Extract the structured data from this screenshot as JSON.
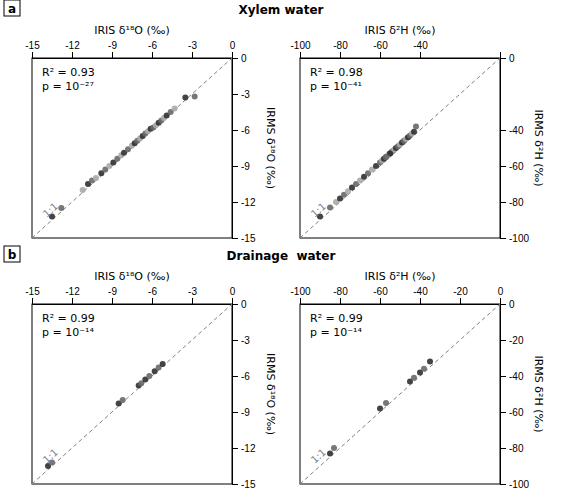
{
  "chart_data": [
    {
      "type": "scatter",
      "title": "Xylem water",
      "panel": "a",
      "x_label": "IRIS δ¹⁸O (‰)",
      "y_label": "IRMS δ¹⁸O (‰)",
      "xlim": [
        -15,
        0
      ],
      "ylim": [
        -15,
        0
      ],
      "xticks": [
        -15,
        -12,
        -9,
        -6,
        -3,
        0
      ],
      "yticks": [
        -15,
        -12,
        -9,
        -6,
        -3,
        0
      ],
      "annotations": [
        "1:1",
        "R² = 0.93",
        "p = 10⁻²⁷"
      ],
      "series": [
        {
          "type": "scatter",
          "x": [
            -13.5,
            -12.8,
            -11.2,
            -10.8,
            -10.5,
            -10.2,
            -9.8,
            -9.5,
            -9.2,
            -8.9,
            -8.6,
            -8.3,
            -8.1,
            -7.8,
            -7.5,
            -7.3,
            -7.1,
            -6.9,
            -6.7,
            -6.5,
            -6.3,
            -6.1,
            -5.9,
            -5.7,
            -5.5,
            -5.3,
            -5.1,
            -4.9,
            -4.6,
            -4.3,
            -3.5,
            -2.8
          ],
          "values": [
            -13.2,
            -12.5,
            -11.0,
            -10.5,
            -10.2,
            -10.0,
            -9.6,
            -9.3,
            -9.0,
            -8.7,
            -8.4,
            -8.1,
            -7.9,
            -7.6,
            -7.3,
            -7.1,
            -6.9,
            -6.7,
            -6.5,
            -6.3,
            -6.1,
            -5.9,
            -5.8,
            -5.6,
            -5.4,
            -5.2,
            -5.0,
            -4.8,
            -4.5,
            -4.2,
            -3.3,
            -3.2
          ],
          "colors": [
            "#303030",
            "#686868",
            "#a8a8a8",
            "#303030",
            "#686868",
            "#a8a8a8",
            "#303030",
            "#686868",
            "#a8a8a8",
            "#303030",
            "#686868",
            "#a8a8a8",
            "#303030",
            "#686868",
            "#a8a8a8",
            "#303030",
            "#686868",
            "#a8a8a8",
            "#303030",
            "#686868",
            "#a8a8a8",
            "#303030",
            "#686868",
            "#a8a8a8",
            "#303030",
            "#686868",
            "#a8a8a8",
            "#303030",
            "#686868",
            "#a8a8a8",
            "#303030",
            "#686868"
          ]
        },
        {
          "type": "line",
          "line_style": "dashed",
          "color": "gray",
          "x": [
            -15,
            0
          ],
          "values": [
            -15,
            0
          ]
        }
      ]
    },
    {
      "type": "scatter",
      "x_label": "IRIS δ²H (‰)",
      "y_label": "IRMS δ²H (‰)",
      "xlim": [
        -100,
        0
      ],
      "ylim": [
        -100,
        0
      ],
      "xticks": [
        -100,
        -80,
        -60,
        -40
      ],
      "yticks": [
        -100,
        -80,
        -60,
        -40,
        0
      ],
      "annotations": [
        "1:1",
        "R² = 0.98",
        "p = 10⁻⁴¹"
      ],
      "series": [
        {
          "type": "scatter",
          "x": [
            -90,
            -85,
            -82,
            -80,
            -78,
            -76,
            -74,
            -72,
            -70,
            -68,
            -66,
            -64,
            -62,
            -60,
            -59,
            -58,
            -57,
            -56,
            -55,
            -54,
            -53,
            -52,
            -51,
            -50,
            -49,
            -48,
            -47,
            -46,
            -45,
            -44,
            -43,
            -42,
            -56,
            -55,
            -57
          ],
          "values": [
            -88,
            -83,
            -80,
            -78,
            -76,
            -74,
            -72,
            -70,
            -68,
            -66,
            -64,
            -62,
            -60,
            -58,
            -57,
            -56,
            -55,
            -54,
            -53,
            -52,
            -51,
            -50,
            -49,
            -48,
            -47,
            -46,
            -45,
            -44,
            -43,
            -42,
            -41,
            -38,
            -54,
            -53,
            -55
          ],
          "colors": [
            "#303030",
            "#686868",
            "#a8a8a8",
            "#303030",
            "#686868",
            "#a8a8a8",
            "#303030",
            "#686868",
            "#a8a8a8",
            "#303030",
            "#686868",
            "#a8a8a8",
            "#303030",
            "#686868",
            "#a8a8a8",
            "#303030",
            "#686868",
            "#a8a8a8",
            "#303030",
            "#686868",
            "#a8a8a8",
            "#303030",
            "#686868",
            "#a8a8a8",
            "#303030",
            "#686868",
            "#a8a8a8",
            "#303030",
            "#686868",
            "#a8a8a8",
            "#303030",
            "#686868",
            "#a8a8a8",
            "#303030",
            "#686868"
          ]
        },
        {
          "type": "line",
          "line_style": "dashed",
          "color": "gray",
          "x": [
            -100,
            0
          ],
          "values": [
            -100,
            0
          ]
        }
      ]
    },
    {
      "type": "scatter",
      "title": "Drainage  water",
      "panel": "b",
      "x_label": "IRIS δ¹⁸O (‰)",
      "y_label": "IRMS δ¹⁸O (‰)",
      "xlim": [
        -15,
        0
      ],
      "ylim": [
        -15,
        0
      ],
      "xticks": [
        -15,
        -12,
        -9,
        -6,
        -3,
        0
      ],
      "yticks": [
        -15,
        -12,
        -9,
        -6,
        -3,
        0
      ],
      "annotations": [
        "1:1",
        "R² = 0.99",
        "p = 10⁻¹⁴"
      ],
      "series": [
        {
          "type": "scatter",
          "x": [
            -13.8,
            -13.5,
            -8.5,
            -8.2,
            -7.0,
            -6.8,
            -6.5,
            -6.2,
            -5.8,
            -5.5,
            -5.2
          ],
          "values": [
            -13.5,
            -13.2,
            -8.3,
            -8.0,
            -6.8,
            -6.6,
            -6.3,
            -6.0,
            -5.6,
            -5.3,
            -5.0
          ],
          "colors": [
            "#303030",
            "#686868",
            "#303030",
            "#686868",
            "#303030",
            "#686868",
            "#303030",
            "#686868",
            "#303030",
            "#686868",
            "#303030"
          ]
        },
        {
          "type": "line",
          "line_style": "dashed",
          "color": "gray",
          "x": [
            -15,
            0
          ],
          "values": [
            -15,
            0
          ]
        }
      ]
    },
    {
      "type": "scatter",
      "x_label": "IRIS δ²H (‰)",
      "y_label": "IRMS δ²H (‰)",
      "xlim": [
        -100,
        0
      ],
      "ylim": [
        -100,
        0
      ],
      "xticks": [
        -100,
        -80,
        -60,
        -40,
        -20,
        0
      ],
      "yticks": [
        -100,
        -80,
        -60,
        -40,
        -20,
        0
      ],
      "annotations": [
        "1:1",
        "R² = 0.99",
        "p = 10⁻¹⁴"
      ],
      "series": [
        {
          "type": "scatter",
          "x": [
            -85,
            -83,
            -60,
            -57,
            -45,
            -43,
            -40,
            -38,
            -35
          ],
          "values": [
            -83,
            -80,
            -58,
            -55,
            -43,
            -41,
            -38,
            -36,
            -32
          ],
          "colors": [
            "#303030",
            "#686868",
            "#303030",
            "#686868",
            "#303030",
            "#686868",
            "#303030",
            "#686868",
            "#303030"
          ]
        },
        {
          "type": "line",
          "line_style": "dashed",
          "color": "gray",
          "x": [
            -100,
            0
          ],
          "values": [
            -100,
            0
          ]
        }
      ]
    }
  ]
}
